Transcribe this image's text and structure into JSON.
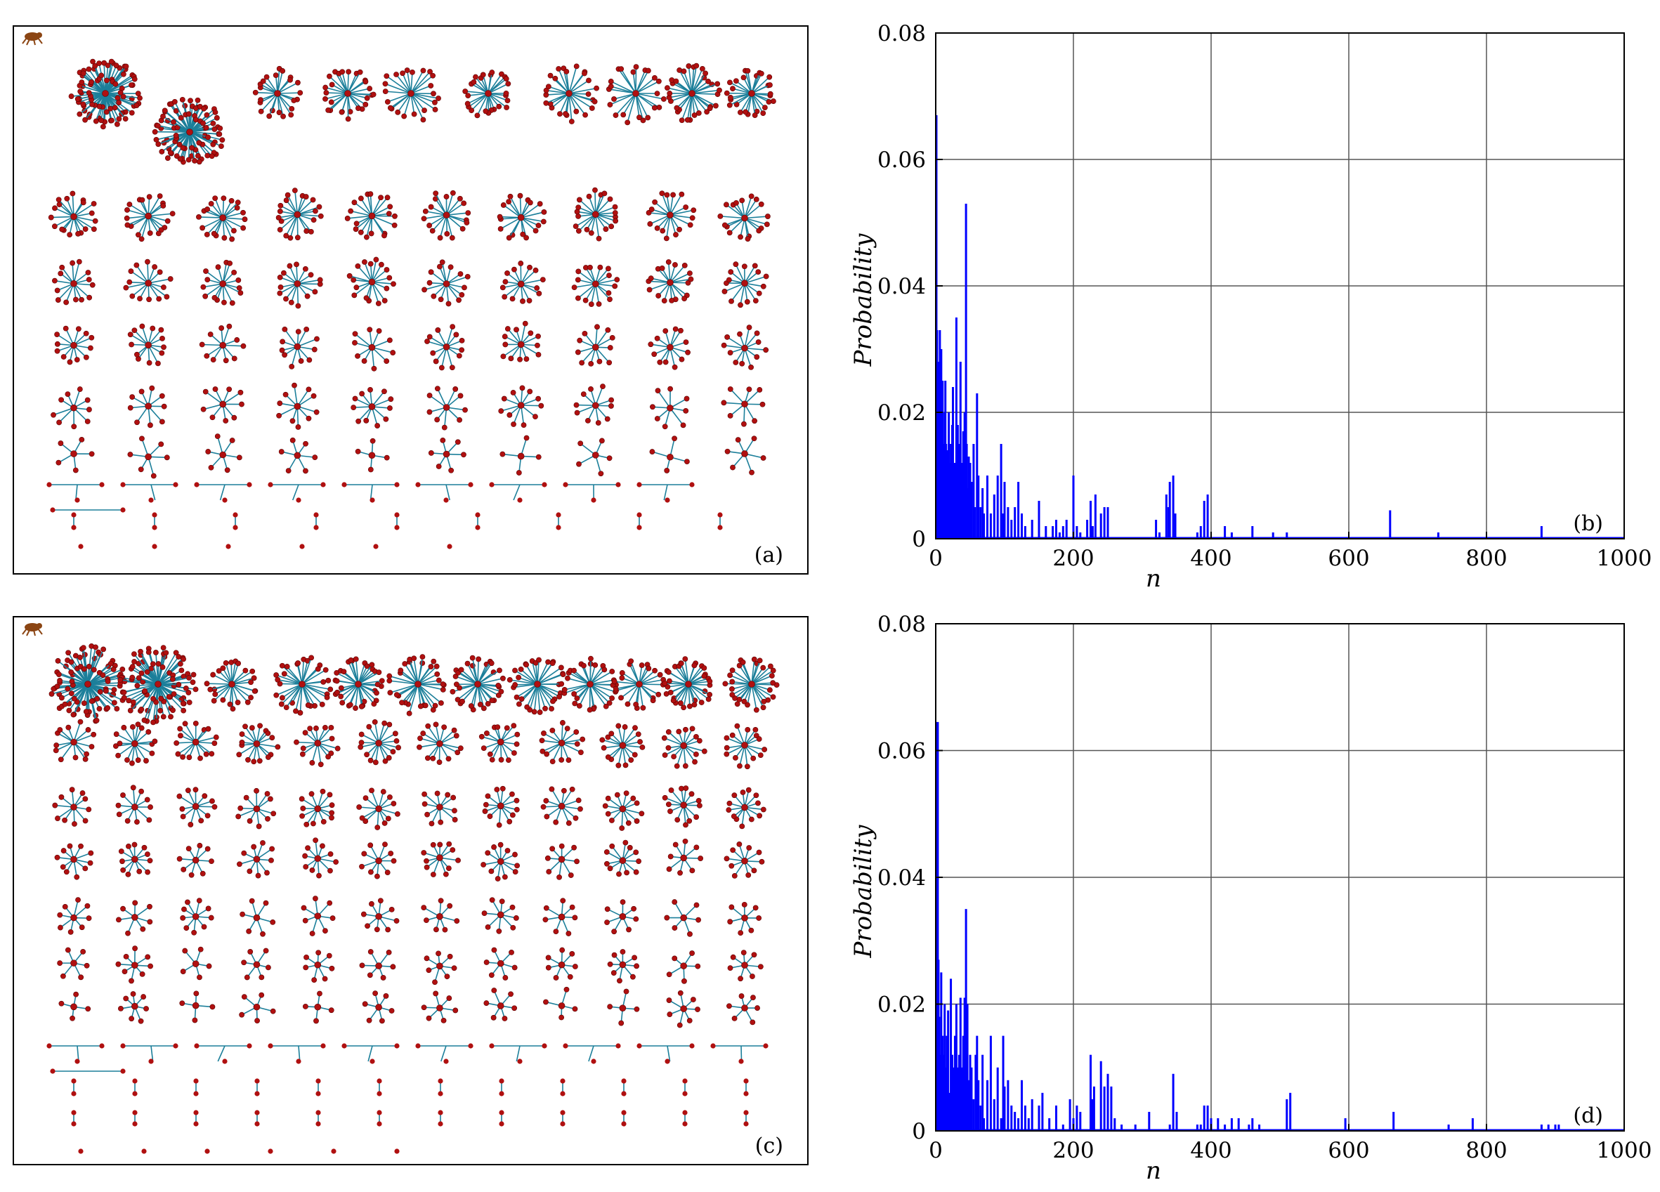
{
  "colors": {
    "node": "#b01010",
    "edge": "#1c7f9a",
    "bar": "#0000ff",
    "grid": "#555555"
  },
  "network_panels": [
    {
      "label": "(a)",
      "icon": "spider-icon"
    },
    {
      "label": "(c)",
      "icon": "spider-icon"
    }
  ],
  "chart_data": [
    {
      "type": "bar",
      "panel_label": "(b)",
      "xlabel": "n",
      "ylabel": "Probability",
      "xlim": [
        0,
        1000
      ],
      "ylim": [
        0,
        0.08
      ],
      "grid": true,
      "xticks": [
        0,
        200,
        400,
        600,
        800,
        1000
      ],
      "yticks": [
        0,
        0.02,
        0.04,
        0.06,
        0.08
      ],
      "xtick_labels": [
        "0",
        "200",
        "400",
        "600",
        "800",
        "1000"
      ],
      "ytick_labels": [
        "0",
        "0.02",
        "0.04",
        "0.06",
        "0.08"
      ],
      "x": [
        1,
        2,
        3,
        4,
        5,
        6,
        7,
        8,
        9,
        10,
        11,
        12,
        13,
        14,
        15,
        16,
        17,
        18,
        19,
        20,
        22,
        24,
        25,
        26,
        28,
        30,
        31,
        32,
        34,
        35,
        36,
        38,
        40,
        42,
        44,
        45,
        46,
        48,
        50,
        52,
        55,
        57,
        60,
        62,
        65,
        68,
        70,
        75,
        80,
        85,
        90,
        95,
        98,
        100,
        105,
        110,
        115,
        120,
        125,
        130,
        140,
        150,
        160,
        170,
        175,
        180,
        185,
        190,
        200,
        205,
        210,
        220,
        225,
        228,
        232,
        240,
        245,
        250,
        320,
        325,
        335,
        338,
        340,
        345,
        348,
        380,
        385,
        390,
        395,
        420,
        430,
        460,
        490,
        510,
        660,
        730,
        880
      ],
      "values": [
        0.067,
        0.033,
        0.021,
        0.028,
        0.018,
        0.033,
        0.012,
        0.03,
        0.02,
        0.025,
        0.015,
        0.01,
        0.02,
        0.025,
        0.015,
        0.01,
        0.014,
        0.008,
        0.02,
        0.012,
        0.015,
        0.018,
        0.024,
        0.01,
        0.012,
        0.035,
        0.012,
        0.018,
        0.015,
        0.007,
        0.028,
        0.012,
        0.017,
        0.02,
        0.053,
        0.015,
        0.008,
        0.013,
        0.012,
        0.009,
        0.015,
        0.005,
        0.023,
        0.01,
        0.005,
        0.008,
        0.004,
        0.01,
        0.004,
        0.007,
        0.01,
        0.015,
        0.004,
        0.009,
        0.005,
        0.003,
        0.005,
        0.009,
        0.004,
        0.002,
        0.003,
        0.006,
        0.002,
        0.002,
        0.003,
        0.001,
        0.002,
        0.003,
        0.01,
        0.002,
        0.001,
        0.003,
        0.006,
        0.002,
        0.007,
        0.004,
        0.005,
        0.005,
        0.003,
        0.001,
        0.007,
        0.005,
        0.009,
        0.01,
        0.004,
        0.001,
        0.002,
        0.006,
        0.007,
        0.002,
        0.001,
        0.002,
        0.001,
        0.001,
        0.0045,
        0.001,
        0.002
      ]
    },
    {
      "type": "bar",
      "panel_label": "(d)",
      "xlabel": "n",
      "ylabel": "Probability",
      "xlim": [
        0,
        1000
      ],
      "ylim": [
        0,
        0.08
      ],
      "grid": true,
      "xticks": [
        0,
        200,
        400,
        600,
        800,
        1000
      ],
      "yticks": [
        0,
        0.02,
        0.04,
        0.06,
        0.08
      ],
      "xtick_labels": [
        "0",
        "200",
        "400",
        "600",
        "800",
        "1000"
      ],
      "ytick_labels": [
        "0",
        "0.02",
        "0.04",
        "0.06",
        "0.08"
      ],
      "x": [
        1,
        2,
        3,
        4,
        5,
        6,
        7,
        8,
        9,
        10,
        11,
        12,
        13,
        14,
        15,
        16,
        18,
        20,
        22,
        24,
        25,
        26,
        28,
        30,
        32,
        34,
        35,
        36,
        38,
        40,
        42,
        44,
        46,
        48,
        50,
        52,
        55,
        58,
        60,
        62,
        65,
        68,
        70,
        75,
        80,
        85,
        90,
        95,
        98,
        100,
        105,
        110,
        115,
        120,
        125,
        130,
        135,
        140,
        150,
        155,
        165,
        175,
        185,
        195,
        200,
        205,
        210,
        225,
        228,
        230,
        240,
        245,
        250,
        255,
        260,
        270,
        290,
        310,
        340,
        345,
        350,
        380,
        385,
        390,
        395,
        400,
        410,
        420,
        430,
        440,
        455,
        460,
        470,
        510,
        515,
        595,
        665,
        745,
        780,
        880,
        890,
        900,
        905
      ],
      "values": [
        0.0645,
        0.02,
        0.0645,
        0.027,
        0.018,
        0.008,
        0.012,
        0.025,
        0.01,
        0.015,
        0.005,
        0.012,
        0.02,
        0.008,
        0.01,
        0.015,
        0.019,
        0.006,
        0.024,
        0.012,
        0.008,
        0.01,
        0.015,
        0.02,
        0.01,
        0.012,
        0.006,
        0.021,
        0.01,
        0.015,
        0.021,
        0.035,
        0.02,
        0.008,
        0.012,
        0.01,
        0.005,
        0.012,
        0.015,
        0.008,
        0.004,
        0.012,
        0.002,
        0.008,
        0.015,
        0.005,
        0.01,
        0.002,
        0.015,
        0.007,
        0.008,
        0.004,
        0.003,
        0.002,
        0.008,
        0.004,
        0.002,
        0.005,
        0.004,
        0.006,
        0.002,
        0.004,
        0.001,
        0.005,
        0.002,
        0.004,
        0.003,
        0.012,
        0.005,
        0.007,
        0.011,
        0.007,
        0.009,
        0.007,
        0.002,
        0.001,
        0.001,
        0.003,
        0.001,
        0.009,
        0.003,
        0.001,
        0.001,
        0.004,
        0.004,
        0.002,
        0.002,
        0.001,
        0.002,
        0.002,
        0.001,
        0.002,
        0.001,
        0.005,
        0.006,
        0.002,
        0.003,
        0.001,
        0.002,
        0.001,
        0.001,
        0.001,
        0.001
      ]
    }
  ]
}
